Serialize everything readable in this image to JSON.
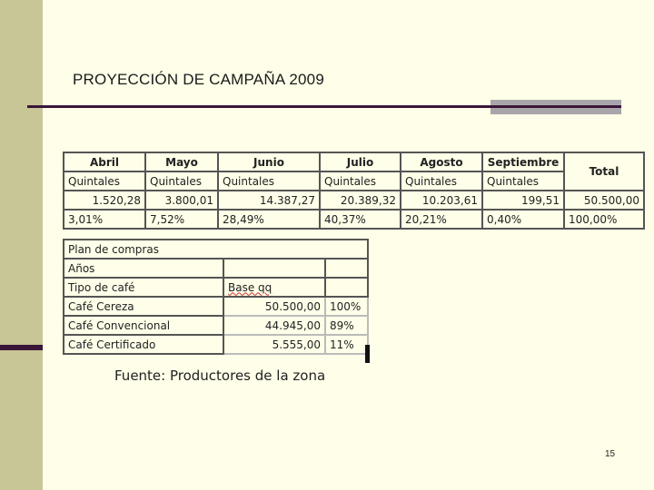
{
  "slide": {
    "title": "PROYECCIÓN DE CAMPAÑA 2009",
    "page_number": "15",
    "source": "Fuente: Productores de la zona"
  },
  "months_table": {
    "months": [
      "Abril",
      "Mayo",
      "Junio",
      "Julio",
      "Agosto",
      "Septiembre"
    ],
    "total_label": "Total",
    "unit": "Quintales",
    "values": [
      "1.520,28",
      "3.800,01",
      "14.387,27",
      "20.389,32",
      "10.203,61",
      "199,51"
    ],
    "total_value": "50.500,00",
    "percents": [
      "3,01%",
      "7,52%",
      "28,49%",
      "40,37%",
      "20,21%",
      "0,40%"
    ],
    "total_percent": "100,00%"
  },
  "plan_table": {
    "title": "Plan de compras",
    "years_label": "Años",
    "type_label": "Tipo de café",
    "base_label": "Base qq",
    "rows": [
      {
        "name": "Café Cereza",
        "value": "50.500,00",
        "pct": "100%"
      },
      {
        "name": "Café Convencional",
        "value": "44.945,00",
        "pct": "89%"
      },
      {
        "name": "Café Certificado",
        "value": "5.555,00",
        "pct": "11%"
      }
    ]
  }
}
